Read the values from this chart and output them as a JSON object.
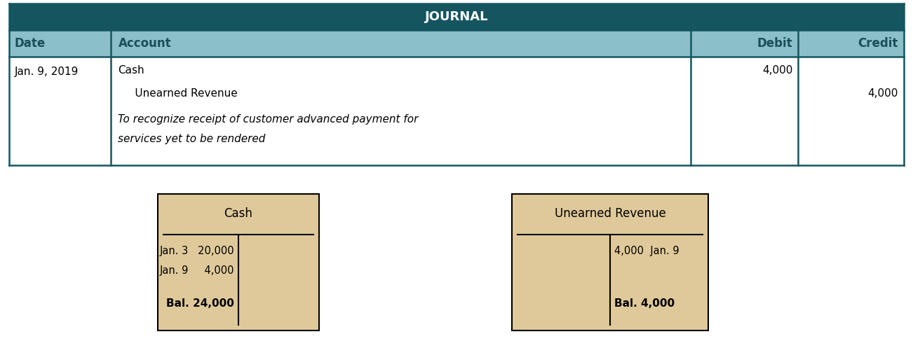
{
  "journal_title": "JOURNAL",
  "header_bg": "#14555f",
  "subheader_bg": "#8bbfc9",
  "row_bg": "#ffffff",
  "header_text_color": "#ffffff",
  "body_text_color": "#000000",
  "border_color": "#14555f",
  "journal_date": "Jan. 9, 2019",
  "journal_account_debit": "Cash",
  "journal_account_credit": "     Unearned Revenue",
  "journal_explanation_line1": "To recognize receipt of customer advanced payment for",
  "journal_explanation_line2": "services yet to be rendered",
  "journal_debit_val": "4,000",
  "journal_credit_val": "4,000",
  "t_bg": "#dfc99a",
  "t_border": "#000000",
  "cash_title": "Cash",
  "cash_debit_entries": [
    [
      "Jan. 3",
      "20,000"
    ],
    [
      "Jan. 9",
      "  4,000"
    ]
  ],
  "cash_balance": "Bal. 24,000",
  "unearned_title": "Unearned Revenue",
  "unearned_credit_entries": [
    [
      "4,000",
      "Jan. 9"
    ]
  ],
  "unearned_balance": "Bal. 4,000",
  "fig_width": 13.02,
  "fig_height": 5.17,
  "dpi": 100
}
